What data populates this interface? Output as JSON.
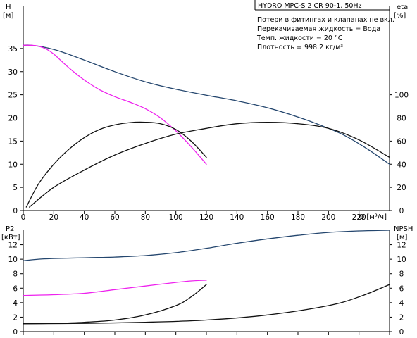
{
  "header": {
    "title": "HYDRO MPC-S 2 CR 90-1, 50Hz",
    "info_lines": [
      "Потери в фитингах и клапанах не вкл.",
      "Перекачиваемая жидкость = Вода",
      "Темп. жидкости = 20 °C",
      "Плотность = 998.2 кг/м³"
    ]
  },
  "colors": {
    "head": "#24466e",
    "head_single": "#ee22ee",
    "eta": "#111111",
    "p2_total": "#24466e",
    "p2_single": "#ee22ee",
    "npsh": "#111111"
  },
  "chart_data": [
    {
      "id": "top",
      "type": "line",
      "title": "HYDRO MPC-S 2 CR 90-1, 50Hz",
      "xlabel": "Q [м³/ч]",
      "xlim": [
        0,
        240
      ],
      "x_ticks": [
        0,
        20,
        40,
        60,
        80,
        100,
        120,
        140,
        160,
        180,
        200,
        220
      ],
      "y_left": {
        "label": "H",
        "unit": "[м]",
        "lim": [
          0,
          40
        ],
        "ticks": [
          0,
          5,
          10,
          15,
          20,
          25,
          30,
          35
        ]
      },
      "y_right": {
        "label": "eta",
        "unit": "[%]",
        "lim": [
          0,
          160
        ],
        "ticks": [
          0,
          20,
          40,
          60,
          80,
          100
        ]
      },
      "grid": false,
      "series": [
        {
          "key": "head",
          "axis": "left",
          "x": [
            0,
            5,
            15,
            25,
            40,
            60,
            80,
            100,
            120,
            140,
            160,
            180,
            195,
            210,
            225,
            240
          ],
          "y": [
            35.7,
            35.7,
            35.2,
            34.3,
            32.5,
            30.0,
            27.8,
            26.2,
            24.9,
            23.7,
            22.2,
            20.2,
            18.4,
            16.3,
            13.4,
            10.0
          ]
        },
        {
          "key": "head_single",
          "axis": "left",
          "x": [
            0,
            5,
            10,
            15,
            20,
            30,
            40,
            50,
            60,
            70,
            80,
            90,
            100,
            110,
            120
          ],
          "y": [
            35.7,
            35.7,
            35.5,
            34.9,
            33.8,
            30.8,
            28.2,
            26.1,
            24.6,
            23.4,
            22.0,
            20.0,
            17.2,
            13.8,
            10.0
          ]
        },
        {
          "key": "eta_single",
          "axis": "right",
          "x": [
            2,
            10,
            20,
            30,
            40,
            50,
            60,
            70,
            80,
            90,
            100,
            110,
            120
          ],
          "y": [
            3,
            23,
            40,
            53,
            63,
            70,
            74,
            76,
            76.3,
            75,
            70,
            60,
            46
          ]
        },
        {
          "key": "eta_total",
          "axis": "right",
          "x": [
            4,
            20,
            40,
            60,
            80,
            100,
            120,
            140,
            160,
            180,
            200,
            220,
            240
          ],
          "y": [
            3,
            20,
            35,
            48,
            58,
            66,
            71,
            75,
            76.2,
            75,
            71,
            61,
            46
          ]
        }
      ]
    },
    {
      "id": "bottom",
      "type": "line",
      "xlim": [
        0,
        240
      ],
      "y_left": {
        "label": "P2",
        "unit": "[кВт]",
        "lim": [
          0,
          14
        ],
        "ticks": [
          0,
          2,
          4,
          6,
          8,
          10,
          12
        ]
      },
      "y_right": {
        "label": "NPSH",
        "unit": "[м]",
        "lim": [
          0,
          14
        ],
        "ticks": [
          0,
          2,
          4,
          6,
          8,
          10,
          12
        ]
      },
      "grid": false,
      "series": [
        {
          "key": "p2_total",
          "axis": "left",
          "x": [
            0,
            10,
            20,
            40,
            60,
            80,
            100,
            120,
            140,
            160,
            180,
            200,
            220,
            240
          ],
          "y": [
            9.8,
            10.0,
            10.1,
            10.2,
            10.3,
            10.5,
            10.9,
            11.5,
            12.2,
            12.8,
            13.3,
            13.7,
            13.9,
            14.0
          ]
        },
        {
          "key": "p2_single",
          "axis": "left",
          "x": [
            0,
            20,
            40,
            60,
            80,
            100,
            110,
            120
          ],
          "y": [
            5.0,
            5.1,
            5.3,
            5.8,
            6.3,
            6.8,
            7.0,
            7.1
          ]
        },
        {
          "key": "npsh_single",
          "axis": "right",
          "x": [
            0,
            20,
            40,
            60,
            80,
            100,
            110,
            120
          ],
          "y": [
            1.1,
            1.15,
            1.3,
            1.6,
            2.3,
            3.6,
            4.8,
            6.5
          ]
        },
        {
          "key": "npsh_total",
          "axis": "right",
          "x": [
            0,
            40,
            80,
            120,
            160,
            200,
            220,
            240
          ],
          "y": [
            1.1,
            1.15,
            1.3,
            1.6,
            2.3,
            3.6,
            4.8,
            6.5
          ]
        }
      ]
    }
  ]
}
